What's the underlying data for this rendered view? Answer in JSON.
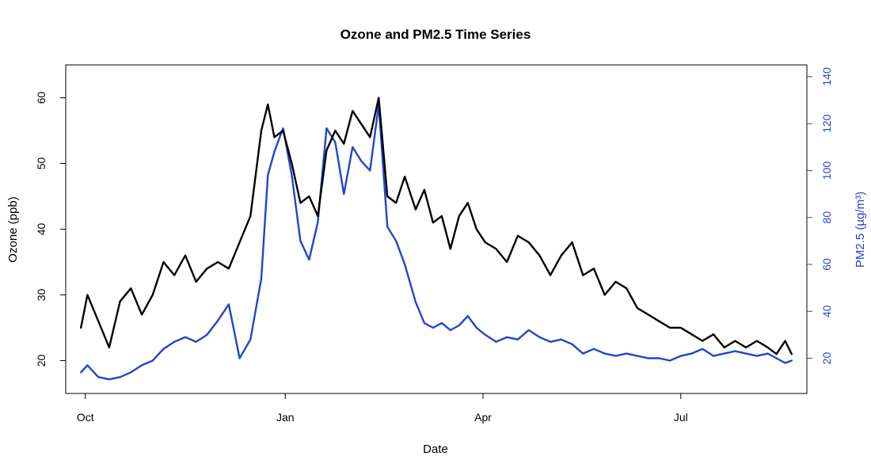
{
  "chart_data": {
    "type": "line",
    "title": "Ozone and PM2.5 Time Series",
    "xlabel": "Date",
    "ylabel": "Ozone (ppb)",
    "y2label": "PM2.5 (µg/m³)",
    "x_range": [
      "2023-09-22",
      "2024-08-28"
    ],
    "ylim": [
      15,
      65
    ],
    "y2lim": [
      5,
      145
    ],
    "x_ticks": [
      {
        "date": "2023-10-01",
        "label": "Oct"
      },
      {
        "date": "2024-01-01",
        "label": "Jan"
      },
      {
        "date": "2024-04-01",
        "label": "Apr"
      },
      {
        "date": "2024-07-01",
        "label": "Jul"
      }
    ],
    "y_ticks": [
      20,
      30,
      40,
      50,
      60
    ],
    "y2_ticks": [
      20,
      40,
      60,
      80,
      100,
      120,
      140
    ],
    "grid": false,
    "series": [
      {
        "name": "Ozone",
        "axis": "left",
        "color": "#000000",
        "points": [
          [
            "2023-09-29",
            25
          ],
          [
            "2023-10-02",
            30
          ],
          [
            "2023-10-07",
            26
          ],
          [
            "2023-10-12",
            22
          ],
          [
            "2023-10-17",
            29
          ],
          [
            "2023-10-22",
            31
          ],
          [
            "2023-10-27",
            27
          ],
          [
            "2023-11-01",
            30
          ],
          [
            "2023-11-06",
            35
          ],
          [
            "2023-11-11",
            33
          ],
          [
            "2023-11-16",
            36
          ],
          [
            "2023-11-21",
            32
          ],
          [
            "2023-11-26",
            34
          ],
          [
            "2023-12-01",
            35
          ],
          [
            "2023-12-06",
            34
          ],
          [
            "2023-12-11",
            38
          ],
          [
            "2023-12-16",
            42
          ],
          [
            "2023-12-21",
            55
          ],
          [
            "2023-12-24",
            59
          ],
          [
            "2023-12-27",
            54
          ],
          [
            "2023-12-31",
            55
          ],
          [
            "2024-01-04",
            50
          ],
          [
            "2024-01-08",
            44
          ],
          [
            "2024-01-12",
            45
          ],
          [
            "2024-01-16",
            42
          ],
          [
            "2024-01-20",
            52
          ],
          [
            "2024-01-24",
            55
          ],
          [
            "2024-01-28",
            53
          ],
          [
            "2024-02-01",
            58
          ],
          [
            "2024-02-05",
            56
          ],
          [
            "2024-02-09",
            54
          ],
          [
            "2024-02-13",
            60
          ],
          [
            "2024-02-17",
            45
          ],
          [
            "2024-02-21",
            44
          ],
          [
            "2024-02-25",
            48
          ],
          [
            "2024-03-01",
            43
          ],
          [
            "2024-03-05",
            46
          ],
          [
            "2024-03-09",
            41
          ],
          [
            "2024-03-13",
            42
          ],
          [
            "2024-03-17",
            37
          ],
          [
            "2024-03-21",
            42
          ],
          [
            "2024-03-25",
            44
          ],
          [
            "2024-03-29",
            40
          ],
          [
            "2024-04-02",
            38
          ],
          [
            "2024-04-07",
            37
          ],
          [
            "2024-04-12",
            35
          ],
          [
            "2024-04-17",
            39
          ],
          [
            "2024-04-22",
            38
          ],
          [
            "2024-04-27",
            36
          ],
          [
            "2024-05-02",
            33
          ],
          [
            "2024-05-07",
            36
          ],
          [
            "2024-05-12",
            38
          ],
          [
            "2024-05-17",
            33
          ],
          [
            "2024-05-22",
            34
          ],
          [
            "2024-05-27",
            30
          ],
          [
            "2024-06-01",
            32
          ],
          [
            "2024-06-06",
            31
          ],
          [
            "2024-06-11",
            28
          ],
          [
            "2024-06-16",
            27
          ],
          [
            "2024-06-21",
            26
          ],
          [
            "2024-06-26",
            25
          ],
          [
            "2024-07-01",
            25
          ],
          [
            "2024-07-06",
            24
          ],
          [
            "2024-07-11",
            23
          ],
          [
            "2024-07-16",
            24
          ],
          [
            "2024-07-21",
            22
          ],
          [
            "2024-07-26",
            23
          ],
          [
            "2024-07-31",
            22
          ],
          [
            "2024-08-05",
            23
          ],
          [
            "2024-08-10",
            22
          ],
          [
            "2024-08-14",
            21
          ],
          [
            "2024-08-18",
            23
          ],
          [
            "2024-08-21",
            21
          ]
        ]
      },
      {
        "name": "PM2.5",
        "axis": "right",
        "color": "#2244cc",
        "points": [
          [
            "2023-09-29",
            14
          ],
          [
            "2023-10-02",
            17
          ],
          [
            "2023-10-07",
            12
          ],
          [
            "2023-10-12",
            11
          ],
          [
            "2023-10-17",
            12
          ],
          [
            "2023-10-22",
            14
          ],
          [
            "2023-10-27",
            17
          ],
          [
            "2023-11-01",
            19
          ],
          [
            "2023-11-06",
            24
          ],
          [
            "2023-11-11",
            27
          ],
          [
            "2023-11-16",
            29
          ],
          [
            "2023-11-21",
            27
          ],
          [
            "2023-11-26",
            30
          ],
          [
            "2023-12-01",
            36
          ],
          [
            "2023-12-06",
            43
          ],
          [
            "2023-12-11",
            20
          ],
          [
            "2023-12-16",
            28
          ],
          [
            "2023-12-21",
            54
          ],
          [
            "2023-12-24",
            98
          ],
          [
            "2023-12-27",
            108
          ],
          [
            "2023-12-31",
            118
          ],
          [
            "2024-01-04",
            98
          ],
          [
            "2024-01-08",
            70
          ],
          [
            "2024-01-12",
            62
          ],
          [
            "2024-01-16",
            78
          ],
          [
            "2024-01-20",
            118
          ],
          [
            "2024-01-24",
            112
          ],
          [
            "2024-01-28",
            90
          ],
          [
            "2024-02-01",
            110
          ],
          [
            "2024-02-05",
            104
          ],
          [
            "2024-02-09",
            100
          ],
          [
            "2024-02-13",
            128
          ],
          [
            "2024-02-17",
            76
          ],
          [
            "2024-02-21",
            70
          ],
          [
            "2024-02-25",
            60
          ],
          [
            "2024-03-01",
            44
          ],
          [
            "2024-03-05",
            35
          ],
          [
            "2024-03-09",
            33
          ],
          [
            "2024-03-13",
            35
          ],
          [
            "2024-03-17",
            32
          ],
          [
            "2024-03-21",
            34
          ],
          [
            "2024-03-25",
            38
          ],
          [
            "2024-03-29",
            33
          ],
          [
            "2024-04-02",
            30
          ],
          [
            "2024-04-07",
            27
          ],
          [
            "2024-04-12",
            29
          ],
          [
            "2024-04-17",
            28
          ],
          [
            "2024-04-22",
            32
          ],
          [
            "2024-04-27",
            29
          ],
          [
            "2024-05-02",
            27
          ],
          [
            "2024-05-07",
            28
          ],
          [
            "2024-05-12",
            26
          ],
          [
            "2024-05-17",
            22
          ],
          [
            "2024-05-22",
            24
          ],
          [
            "2024-05-27",
            22
          ],
          [
            "2024-06-01",
            21
          ],
          [
            "2024-06-06",
            22
          ],
          [
            "2024-06-11",
            21
          ],
          [
            "2024-06-16",
            20
          ],
          [
            "2024-06-21",
            20
          ],
          [
            "2024-06-26",
            19
          ],
          [
            "2024-07-01",
            21
          ],
          [
            "2024-07-06",
            22
          ],
          [
            "2024-07-11",
            24
          ],
          [
            "2024-07-16",
            21
          ],
          [
            "2024-07-21",
            22
          ],
          [
            "2024-07-26",
            23
          ],
          [
            "2024-07-31",
            22
          ],
          [
            "2024-08-05",
            21
          ],
          [
            "2024-08-10",
            22
          ],
          [
            "2024-08-14",
            20
          ],
          [
            "2024-08-18",
            18
          ],
          [
            "2024-08-21",
            19
          ]
        ]
      }
    ]
  }
}
